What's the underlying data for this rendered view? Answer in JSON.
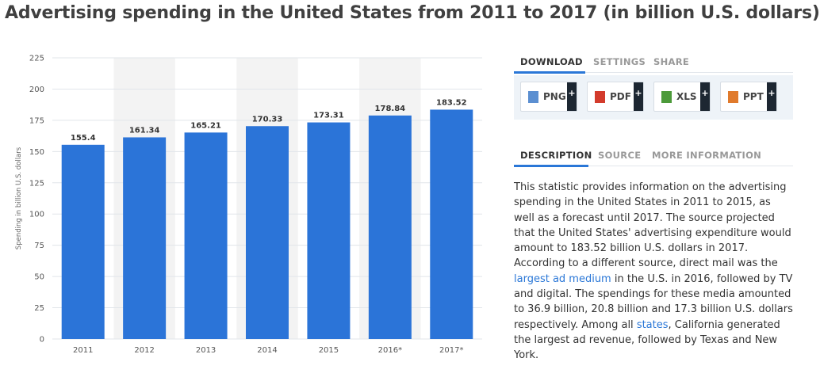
{
  "page": {
    "title": "Advertising spending in the United States from 2011 to 2017 (in billion U.S. dollars)"
  },
  "colors": {
    "bar": "#2b74d8",
    "grid": "#e1e5ea",
    "band": "#f3f3f3",
    "link": "#2a77d7"
  },
  "chart_data": {
    "type": "bar",
    "title": "Advertising spending in the United States from 2011 to 2017 (in billion U.S. dollars)",
    "xlabel": "",
    "ylabel": "Spending in billion U.S. dollars",
    "categories": [
      "2011",
      "2012",
      "2013",
      "2014",
      "2015",
      "2016*",
      "2017*"
    ],
    "values": [
      155.4,
      161.34,
      165.21,
      170.33,
      173.31,
      178.84,
      183.52
    ],
    "value_labels": [
      "155.4",
      "161.34",
      "165.21",
      "170.33",
      "173.31",
      "178.84",
      "183.52"
    ],
    "ylim": [
      0,
      225
    ],
    "yticks": [
      0,
      25,
      50,
      75,
      100,
      125,
      150,
      175,
      200,
      225
    ],
    "grid": true,
    "shaded_categories": [
      "2012",
      "2014",
      "2016*"
    ]
  },
  "download_panel": {
    "tabs": [
      {
        "label": "DOWNLOAD",
        "active": true
      },
      {
        "label": "SETTINGS",
        "active": false
      },
      {
        "label": "SHARE",
        "active": false
      }
    ],
    "buttons": [
      {
        "label": "PNG",
        "icon": "png-file-icon",
        "color": "#5b8fd1"
      },
      {
        "label": "PDF",
        "icon": "pdf-file-icon",
        "color": "#d33b2c"
      },
      {
        "label": "XLS",
        "icon": "xls-file-icon",
        "color": "#4c9a3a"
      },
      {
        "label": "PPT",
        "icon": "ppt-file-icon",
        "color": "#e07a2c"
      }
    ],
    "plus_label": "+"
  },
  "info_panel": {
    "tabs": [
      {
        "label": "DESCRIPTION",
        "active": true
      },
      {
        "label": "SOURCE",
        "active": false
      },
      {
        "label": "MORE INFORMATION",
        "active": false
      }
    ],
    "description": {
      "part1": "This statistic provides information on the advertising spending in the United States in 2011 to 2015, as well as a forecast until 2017. The source projected that the United States' advertising expenditure would amount to 183.52 billion U.S. dollars in 2017. According to a different source, direct mail was the ",
      "link1": "largest ad medium",
      "part2": " in the U.S. in 2016, followed by TV and digital. The spendings for these media amounted to 36.9 billion, 20.8 billion and 17.3 billion U.S. dollars respectively. Among all ",
      "link2": "states",
      "part3": ", California generated the largest ad revenue, followed by Texas and New York."
    }
  }
}
